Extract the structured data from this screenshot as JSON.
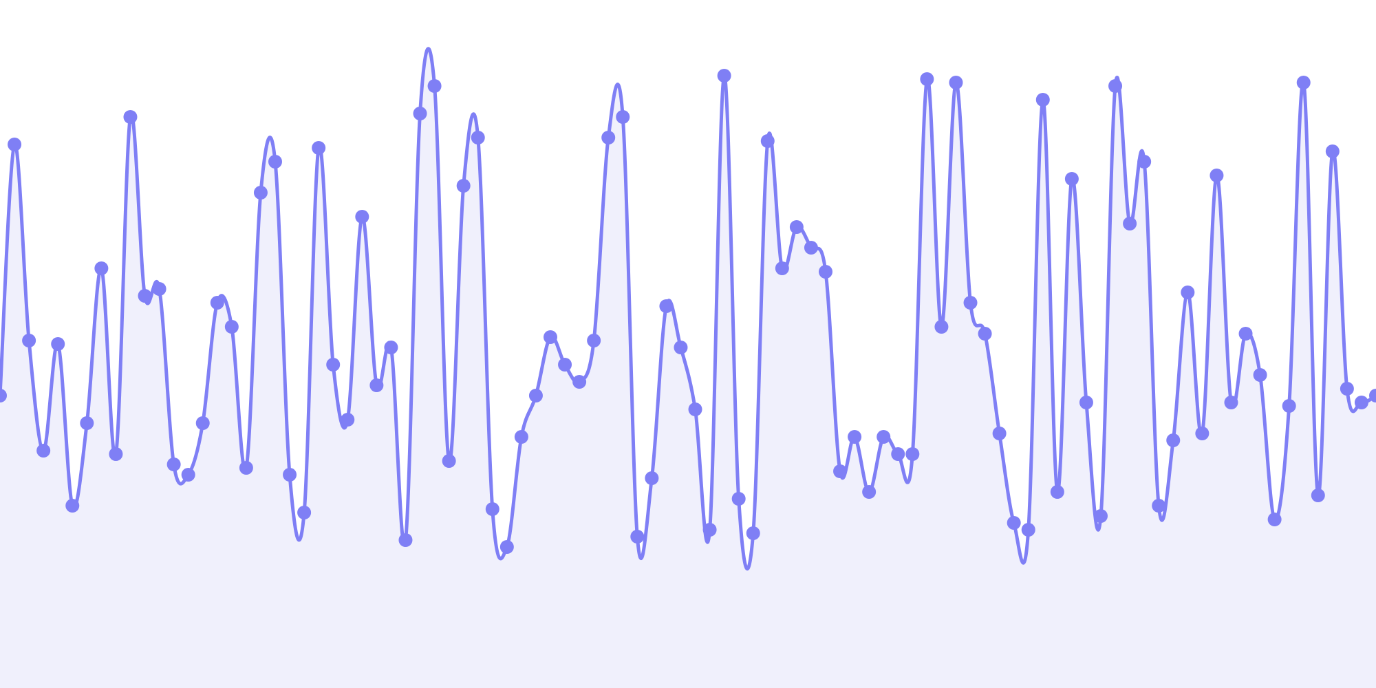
{
  "colors": {
    "line": "#7f7ff5",
    "fill": "#f0f0fc",
    "marker": "#7f7ff5",
    "background": "#ffffff"
  },
  "chart_data": {
    "type": "area",
    "title": "",
    "xlabel": "",
    "ylabel": "",
    "grid": false,
    "legend": false,
    "x_range": [
      0,
      95
    ],
    "y_range": [
      0,
      100
    ],
    "series": [
      {
        "values": [
          42.5,
          79,
          50.5,
          34.5,
          50,
          26.5,
          38.5,
          61,
          34,
          83,
          57,
          58,
          32.5,
          31,
          38.5,
          56,
          52.5,
          32,
          72,
          76.5,
          31,
          25.5,
          78.5,
          47,
          39,
          68.5,
          44,
          49.5,
          21.5,
          83.5,
          87.5,
          33,
          73,
          80,
          26,
          20.5,
          36.5,
          42.5,
          51,
          47,
          44.5,
          50.5,
          80,
          83,
          22,
          30.5,
          55.5,
          49.5,
          40.5,
          23,
          89,
          27.5,
          22.5,
          79.5,
          61,
          67,
          64,
          60.5,
          31.5,
          36.5,
          28.5,
          36.5,
          34,
          34,
          88.5,
          52.5,
          88,
          56,
          51.5,
          37,
          24,
          23,
          85.5,
          28.5,
          74,
          41.5,
          25,
          87.5,
          67.5,
          76.5,
          26.5,
          36,
          57.5,
          37,
          74.5,
          41.5,
          51.5,
          45.5,
          24.5,
          41,
          88,
          28,
          78,
          43.5,
          41.5,
          42.5
        ]
      }
    ]
  }
}
